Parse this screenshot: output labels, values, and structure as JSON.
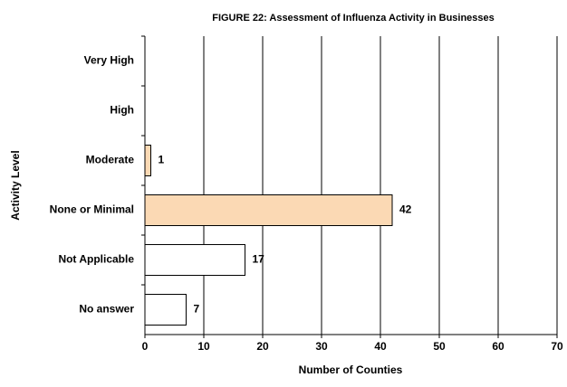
{
  "chart_data": {
    "type": "hbar",
    "title": "FIGURE  22: Assessment of Influenza Activity in Businesses",
    "x_label": "Number of Counties",
    "y_label": "Activity Level",
    "categories": [
      "Very High",
      "High",
      "Moderate",
      "None or Minimal",
      "Not Applicable",
      "No answer"
    ],
    "values": [
      null,
      null,
      1,
      42,
      17,
      7
    ],
    "colors": [
      "#ffffff",
      "#ffffff",
      "#fbd9b4",
      "#fbd9b4",
      "#ffffff",
      "#ffffff"
    ],
    "xlim": [
      0,
      70
    ],
    "xticks": [
      0,
      10,
      20,
      30,
      40,
      50,
      60,
      70
    ],
    "grid": true
  }
}
